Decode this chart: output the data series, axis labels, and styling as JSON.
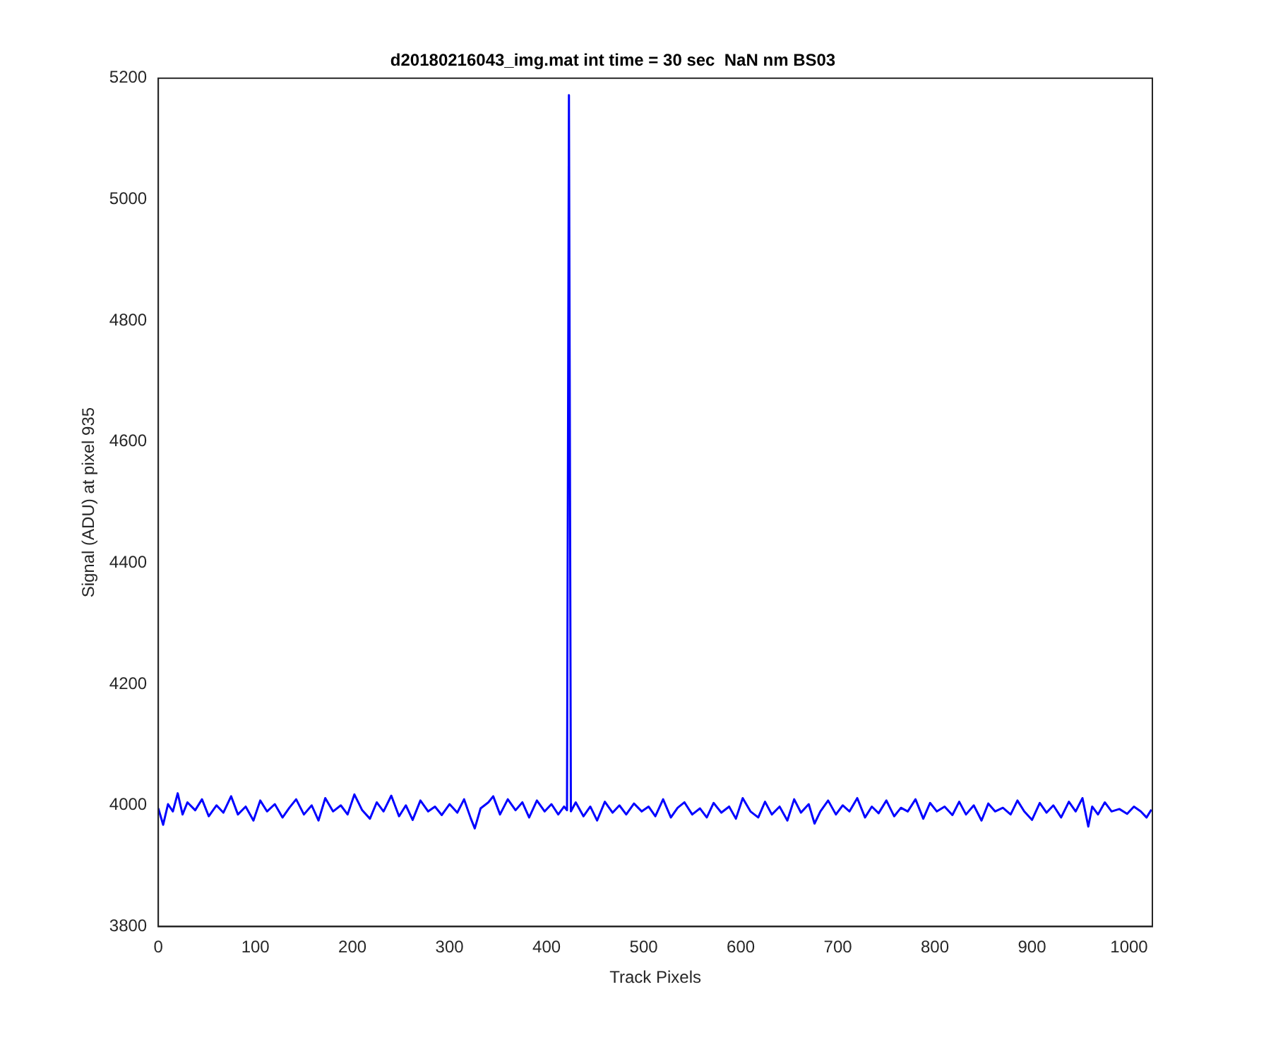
{
  "chart_data": {
    "type": "line",
    "title": "d20180216043_img.mat int time = 30 sec  NaN nm BS03",
    "xlabel": "Track Pixels",
    "ylabel": "Signal (ADU) at pixel 935",
    "xlim": [
      0,
      1024
    ],
    "ylim": [
      3800,
      5200
    ],
    "xticks": [
      0,
      100,
      200,
      300,
      400,
      500,
      600,
      700,
      800,
      900,
      1000
    ],
    "yticks": [
      3800,
      4000,
      4200,
      4400,
      4600,
      4800,
      5000,
      5200
    ],
    "grid": false,
    "legend": false,
    "series": [
      {
        "color": "#0000ff",
        "x": [
          0,
          5,
          10,
          15,
          20,
          25,
          30,
          38,
          45,
          52,
          60,
          67,
          75,
          82,
          90,
          98,
          105,
          112,
          120,
          128,
          135,
          142,
          150,
          158,
          165,
          172,
          180,
          188,
          195,
          202,
          210,
          218,
          225,
          232,
          240,
          248,
          255,
          262,
          270,
          278,
          285,
          292,
          300,
          308,
          315,
          322,
          326,
          332,
          340,
          345,
          352,
          360,
          368,
          375,
          382,
          390,
          398,
          405,
          412,
          418,
          421,
          423,
          425,
          430,
          438,
          445,
          452,
          460,
          468,
          475,
          482,
          490,
          498,
          505,
          512,
          520,
          528,
          535,
          542,
          550,
          558,
          565,
          572,
          580,
          588,
          595,
          602,
          610,
          618,
          625,
          632,
          640,
          648,
          655,
          662,
          670,
          676,
          682,
          690,
          698,
          705,
          712,
          720,
          728,
          735,
          742,
          750,
          758,
          765,
          772,
          780,
          788,
          795,
          802,
          810,
          818,
          825,
          832,
          840,
          848,
          855,
          862,
          870,
          878,
          885,
          892,
          900,
          908,
          915,
          922,
          930,
          938,
          945,
          952,
          958,
          962,
          968,
          975,
          982,
          990,
          998,
          1005,
          1012,
          1018,
          1023
        ],
        "values": [
          3995,
          3968,
          4002,
          3990,
          4020,
          3985,
          4005,
          3992,
          4010,
          3982,
          4000,
          3988,
          4015,
          3985,
          3998,
          3975,
          4008,
          3990,
          4002,
          3980,
          3996,
          4010,
          3985,
          4000,
          3975,
          4012,
          3990,
          4000,
          3985,
          4018,
          3992,
          3978,
          4005,
          3990,
          4016,
          3982,
          4000,
          3976,
          4008,
          3990,
          3998,
          3984,
          4002,
          3988,
          4010,
          3978,
          3962,
          3995,
          4005,
          4015,
          3985,
          4010,
          3992,
          4005,
          3980,
          4008,
          3990,
          4002,
          3985,
          3998,
          3992,
          5172,
          3990,
          4005,
          3982,
          3998,
          3975,
          4006,
          3988,
          4000,
          3985,
          4003,
          3990,
          3998,
          3982,
          4010,
          3980,
          3996,
          4005,
          3985,
          3995,
          3980,
          4004,
          3988,
          3998,
          3978,
          4012,
          3990,
          3980,
          4006,
          3985,
          3998,
          3975,
          4010,
          3988,
          4002,
          3970,
          3990,
          4008,
          3985,
          4000,
          3990,
          4012,
          3980,
          3998,
          3987,
          4008,
          3982,
          3996,
          3990,
          4010,
          3978,
          4004,
          3990,
          3998,
          3984,
          4006,
          3985,
          4000,
          3975,
          4003,
          3990,
          3996,
          3985,
          4008,
          3990,
          3976,
          4004,
          3988,
          4000,
          3980,
          4006,
          3990,
          4012,
          3965,
          3998,
          3985,
          4005,
          3990,
          3994,
          3986,
          3998,
          3990,
          3980,
          3993
        ]
      }
    ]
  }
}
